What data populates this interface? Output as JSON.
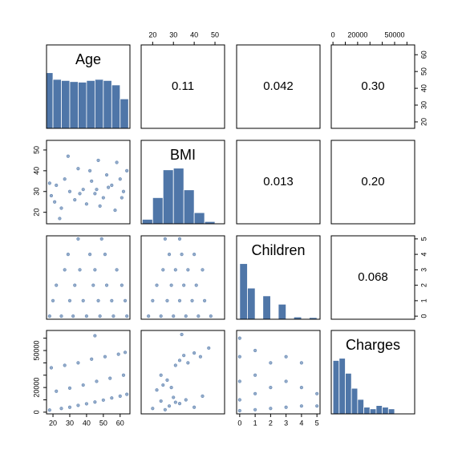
{
  "chart_data": {
    "type": "pairs",
    "color": "#4F76A8",
    "hist_ylim": [
      0,
      1.5
    ],
    "variables": [
      {
        "name": "Age",
        "lim": [
          16.16,
          65.84
        ],
        "ticks": [
          20,
          30,
          40,
          50,
          60
        ],
        "hist": {
          "bins": [
            15,
            20,
            25,
            30,
            35,
            40,
            45,
            50,
            55,
            60,
            65
          ],
          "values": [
            1,
            0.88,
            0.86,
            0.84,
            0.83,
            0.86,
            0.88,
            0.86,
            0.78,
            0.53
          ]
        }
      },
      {
        "name": "BMI",
        "lim": [
          14.47,
          54.62
        ],
        "ticks": [
          20,
          30,
          40,
          50
        ],
        "hist": {
          "bins": [
            15,
            20,
            25,
            30,
            35,
            40,
            45,
            50,
            55
          ],
          "values": [
            0.08,
            0.47,
            0.97,
            1,
            0.61,
            0.2,
            0.04,
            0.01
          ]
        }
      },
      {
        "name": "Children",
        "lim": [
          -0.2,
          5.2
        ],
        "ticks": [
          0,
          1,
          2,
          3,
          4,
          5
        ],
        "hist": {
          "bins": [
            0,
            0.5,
            1,
            1.5,
            2,
            2.5,
            3,
            3.5,
            4,
            4.5,
            5
          ],
          "values": [
            1,
            0.56,
            0,
            0.42,
            0,
            0.27,
            0,
            0.04,
            0,
            0.03
          ]
        }
      },
      {
        "name": "Charges",
        "lim": [
          -1384,
          66276
        ],
        "ticks": [
          0,
          10000,
          20000,
          30000,
          40000,
          50000,
          60000
        ],
        "labeled_ticks": [
          0,
          20000,
          50000
        ],
        "hist": {
          "bins": [
            0,
            5000,
            10000,
            15000,
            20000,
            25000,
            30000,
            35000,
            40000,
            45000,
            50000,
            55000,
            60000,
            65000
          ],
          "values": [
            0.96,
            1,
            0.73,
            0.46,
            0.26,
            0.12,
            0.09,
            0.15,
            0.12,
            0.09,
            0.01,
            0,
            0.01
          ]
        }
      }
    ],
    "correlations": {
      "values": [
        0.11,
        0.042,
        0.3,
        0.013,
        0.2,
        0.068
      ],
      "value_labels": [
        "0.11",
        "0.042",
        "0.30",
        "0.013",
        "0.20",
        "0.068"
      ]
    },
    "scatter": [
      {
        "x": [
          19,
          22,
          25,
          27,
          30,
          33,
          35,
          38,
          40,
          43,
          45,
          47,
          50,
          52,
          55,
          57,
          60,
          62,
          64,
          18,
          24,
          29,
          36,
          42,
          48,
          53,
          58,
          61,
          21,
          46
        ],
        "y": [
          28,
          33,
          22,
          36,
          30,
          26,
          41,
          31,
          24,
          35,
          29,
          45,
          27,
          38,
          33,
          21,
          36,
          30,
          40,
          34,
          17,
          47,
          29,
          40,
          23,
          32,
          44,
          27,
          25,
          31
        ]
      },
      {
        "x": [
          18,
          25,
          32,
          40,
          48,
          56,
          64,
          20,
          30,
          38,
          47,
          55,
          63,
          22,
          33,
          44,
          52,
          61,
          27,
          36,
          45,
          58,
          29,
          42,
          51,
          35,
          49
        ],
        "y": [
          0,
          0,
          0,
          0,
          0,
          0,
          0,
          1,
          1,
          1,
          1,
          1,
          1,
          2,
          2,
          2,
          2,
          2,
          3,
          3,
          3,
          3,
          4,
          4,
          4,
          5,
          5
        ]
      },
      {
        "x": [
          18,
          25,
          30,
          35,
          40,
          45,
          50,
          55,
          60,
          64,
          22,
          30,
          38,
          46,
          54,
          62,
          19,
          27,
          35,
          43,
          51,
          59,
          63,
          45
        ],
        "y": [
          1700,
          3000,
          4000,
          5500,
          6800,
          8200,
          9800,
          11500,
          13000,
          14500,
          17000,
          19500,
          22000,
          25000,
          27500,
          30000,
          36000,
          38000,
          40000,
          43000,
          45000,
          47000,
          48500,
          62000
        ]
      },
      {
        "x": [
          18,
          24,
          30,
          36,
          42,
          48,
          20,
          27,
          33,
          39,
          45,
          22,
          29,
          35,
          41,
          25,
          31,
          37,
          44,
          28,
          34,
          40,
          26,
          33
        ],
        "y": [
          0,
          0,
          0,
          0,
          0,
          0,
          1,
          1,
          1,
          1,
          1,
          2,
          2,
          2,
          2,
          3,
          3,
          3,
          3,
          4,
          4,
          4,
          5,
          5
        ]
      },
      {
        "x": [
          20,
          24,
          28,
          30,
          33,
          36,
          40,
          44,
          26,
          31,
          22,
          25,
          27,
          29,
          24,
          31,
          33,
          35,
          37,
          40,
          43,
          47,
          34
        ],
        "y": [
          3000,
          9000,
          5000,
          12000,
          7000,
          10000,
          4000,
          13000,
          2000,
          8000,
          18000,
          22000,
          26000,
          20000,
          30000,
          38000,
          42000,
          46000,
          40000,
          48000,
          45000,
          52000,
          63000
        ]
      },
      {
        "x": [
          0,
          0,
          0,
          0,
          0,
          1,
          1,
          1,
          1,
          2,
          2,
          2,
          3,
          3,
          3,
          4,
          4,
          4,
          5,
          5
        ],
        "y": [
          1200,
          10000,
          25000,
          45000,
          60000,
          2000,
          15000,
          30000,
          50000,
          3000,
          20000,
          40000,
          4000,
          25000,
          45000,
          5000,
          20000,
          40000,
          5000,
          15000
        ]
      }
    ]
  }
}
